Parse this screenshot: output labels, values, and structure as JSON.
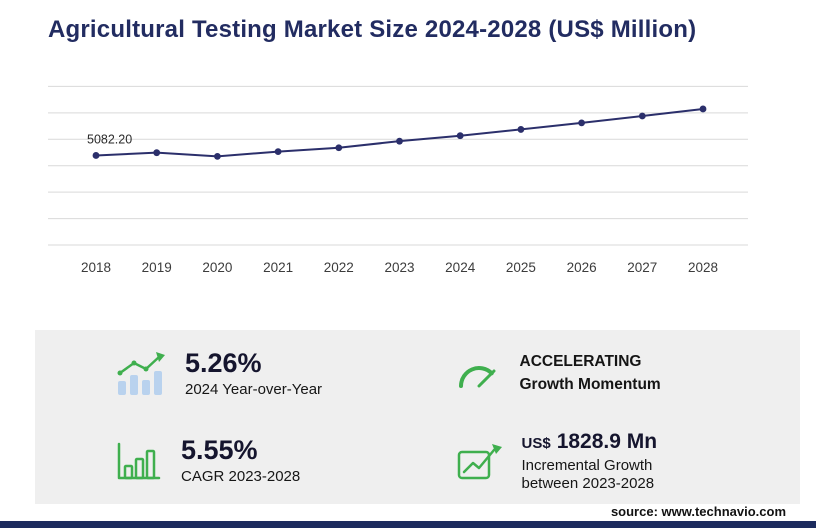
{
  "title": "Agricultural Testing Market Size 2024-2028 (US$ Million)",
  "source_text": "source: www.technavio.com",
  "chart_data": {
    "type": "line",
    "title": "Agricultural Testing Market Size 2024-2028 (US$ Million)",
    "x_labels": [
      "2018",
      "2019",
      "2020",
      "2021",
      "2022",
      "2023",
      "2024",
      "2025",
      "2026",
      "2027",
      "2028"
    ],
    "values": [
      5082.2,
      5240,
      5030,
      5300,
      5520,
      5893,
      6203,
      6560,
      6930,
      7320,
      7722
    ],
    "first_point_label": "5082.20",
    "xlabel": "",
    "ylabel": "",
    "ylim": [
      0,
      10500
    ],
    "grid": "horizontal",
    "legend": false,
    "line_color": "#2b2f6b",
    "marker": "circle"
  },
  "stats": {
    "yoy": {
      "icon": "yoy-bar-growth-icon",
      "value": "5.26%",
      "label": "2024 Year-over-Year"
    },
    "momentum": {
      "icon": "speedometer-icon",
      "line1": "ACCELERATING",
      "line2": "Growth Momentum"
    },
    "cagr": {
      "icon": "bar-chart-icon",
      "value": "5.55%",
      "label": "CAGR 2023-2028"
    },
    "incremental": {
      "icon": "line-growth-icon",
      "prefix": "US$",
      "value": "1828.9 Mn",
      "line1": "Incremental Growth",
      "line2": "between 2023-2028"
    }
  },
  "colors": {
    "navy": "#222c61",
    "line": "#2b2f6b",
    "green": "#3faf4e",
    "light_blue": "#b9d2ee",
    "card_bg": "#efefef",
    "grid": "#d9d9d9",
    "footer_bar": "#1c2b5e"
  }
}
